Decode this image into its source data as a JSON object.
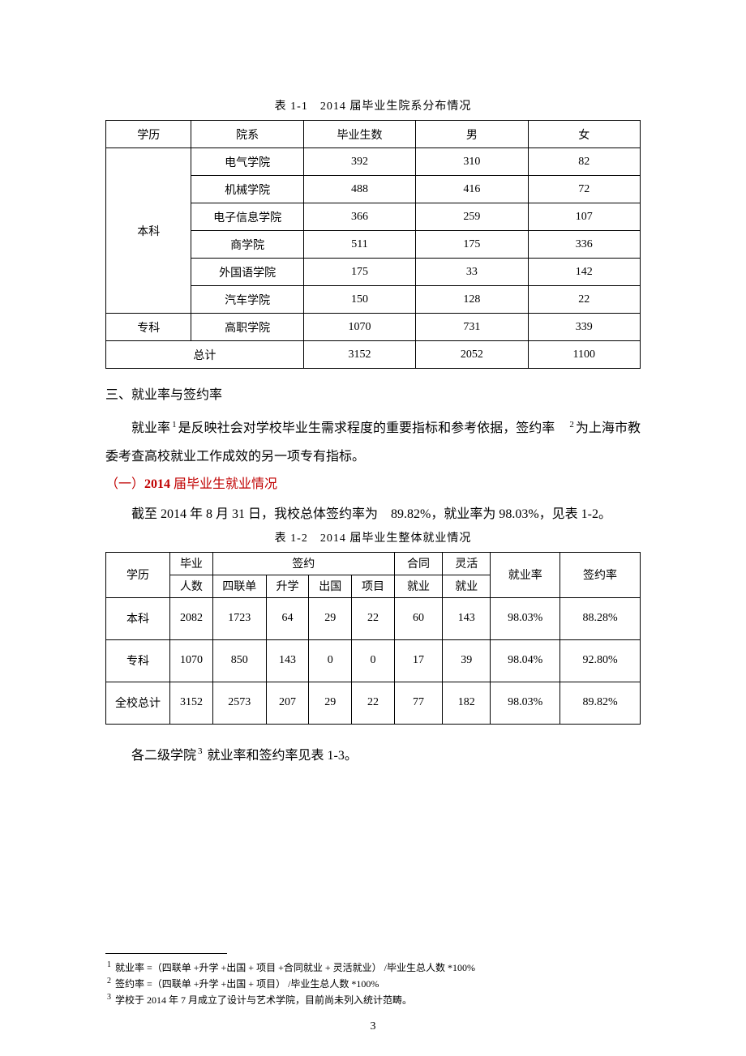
{
  "table1": {
    "caption": "表 1-1　2014 届毕业生院系分布情况",
    "headers": [
      "学历",
      "院系",
      "毕业生数",
      "男",
      "女"
    ],
    "groups": [
      {
        "degree": "本科",
        "rows": [
          [
            "电气学院",
            "392",
            "310",
            "82"
          ],
          [
            "机械学院",
            "488",
            "416",
            "72"
          ],
          [
            "电子信息学院",
            "366",
            "259",
            "107"
          ],
          [
            "商学院",
            "511",
            "175",
            "336"
          ],
          [
            "外国语学院",
            "175",
            "33",
            "142"
          ],
          [
            "汽车学院",
            "150",
            "128",
            "22"
          ]
        ]
      },
      {
        "degree": "专科",
        "rows": [
          [
            "高职学院",
            "1070",
            "731",
            "339"
          ]
        ]
      }
    ],
    "total": {
      "label": "总计",
      "cells": [
        "3152",
        "2052",
        "1100"
      ]
    },
    "col_widths": [
      "16%",
      "21%",
      "21%",
      "21%",
      "21%"
    ]
  },
  "sec3_heading": "三、就业率与签约率",
  "para1_a": "就业率",
  "para1_b": "是反映社会对学校毕业生需求程度的重要指标和参考依据，签约率",
  "para1_c": "为上海市教委考查高校就业工作成效的另一项专有指标。",
  "sub_a": "（一）",
  "sub_b": "2014",
  "sub_c": " 届毕业生就业情况",
  "para2": "截至 2014 年 8 月 31 日，我校总体签约率为　89.82%，就业率为 98.03%，见表 1-2。",
  "table2": {
    "caption": "表 1-2　2014 届毕业生整体就业情况",
    "h_degree": "学历",
    "h_grad": "毕业",
    "h_grad2": "人数",
    "h_sign": "签约",
    "h_sign_sub": [
      "四联单",
      "升学",
      "出国",
      "项目"
    ],
    "h_contract": "合同",
    "h_contract2": "就业",
    "h_flex": "灵活",
    "h_flex2": "就业",
    "h_emp_rate": "就业率",
    "h_sign_rate": "签约率",
    "rows": [
      [
        "本科",
        "2082",
        "1723",
        "64",
        "29",
        "22",
        "60",
        "143",
        "98.03%",
        "88.28%"
      ],
      [
        "专科",
        "1070",
        "850",
        "143",
        "0",
        "0",
        "17",
        "39",
        "98.04%",
        "92.80%"
      ],
      [
        "全校总计",
        "3152",
        "2573",
        "207",
        "29",
        "22",
        "77",
        "182",
        "98.03%",
        "89.82%"
      ]
    ],
    "col_widths": [
      "12%",
      "8%",
      "10%",
      "8%",
      "8%",
      "8%",
      "9%",
      "9%",
      "13%",
      "15%"
    ]
  },
  "after_t2_a": "各二级学院",
  "after_t2_b": " 就业率和签约率见表 1-3。",
  "footnotes": [
    " 就业率 =（四联单 +升学 +出国 + 项目 +合同就业 + 灵活就业） /毕业生总人数  *100%",
    " 签约率 =（四联单 +升学 +出国 + 项目） /毕业生总人数  *100%",
    " 学校于 2014 年 7 月成立了设计与艺术学院，目前尚未列入统计范畴。"
  ],
  "page_num": "3",
  "sup": {
    "1": "1",
    "2": "2",
    "3": "3"
  }
}
